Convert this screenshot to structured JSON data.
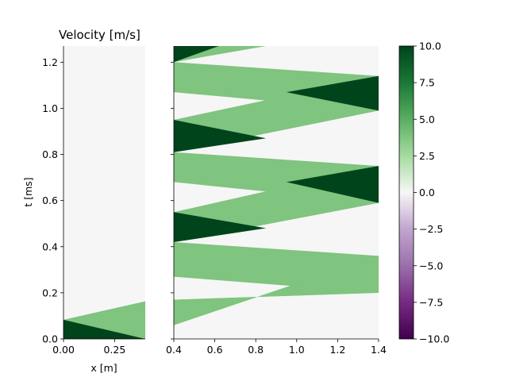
{
  "chart_data": {
    "type": "heatmap",
    "title": "Velocity [m/s]",
    "xlabel": "x [m]",
    "ylabel": "t [ms]",
    "units": "m/s",
    "vmin": -10,
    "vmax": 10,
    "colormap": "PRGn",
    "colors": {
      "low": "#40004b",
      "mid": "#f7f7f7",
      "high": "#00441b",
      "medium_positive": "#7fc47f",
      "background": "#f6f6f6"
    },
    "panels": [
      {
        "name": "left",
        "xlim": [
          0.0,
          0.4
        ],
        "ylim": [
          0.0,
          1.27
        ],
        "xticks": [
          "0.00",
          "0.25"
        ],
        "xtick_values": [
          0.0,
          0.25
        ],
        "yticks": [
          "0.0",
          "0.2",
          "0.4",
          "0.6",
          "0.8",
          "1.0",
          "1.2"
        ],
        "ytick_values": [
          0.0,
          0.2,
          0.4,
          0.6,
          0.8,
          1.0,
          1.2
        ],
        "regions": [
          {
            "value": 4,
            "points": [
              [
                0.0,
                0.0
              ],
              [
                0.4,
                0.0
              ],
              [
                0.4,
                0.163
              ],
              [
                0.0,
                0.083
              ]
            ]
          },
          {
            "value": 10,
            "points": [
              [
                0.0,
                0.0
              ],
              [
                0.4,
                0.0
              ],
              [
                0.0,
                0.083
              ]
            ]
          }
        ]
      },
      {
        "name": "right",
        "xlim": [
          0.4,
          1.4
        ],
        "ylim": [
          0.0,
          1.27
        ],
        "xticks": [
          "0.4",
          "0.6",
          "0.8",
          "1.0",
          "1.2",
          "1.4"
        ],
        "xtick_values": [
          0.4,
          0.6,
          0.8,
          1.0,
          1.2,
          1.4
        ],
        "regions": [
          {
            "value": 4,
            "points": [
              [
                0.4,
                0.0
              ],
              [
                0.4,
                0.17
              ],
              [
                1.4,
                0.2
              ],
              [
                1.4,
                0.36
              ],
              [
                0.4,
                0.06
              ]
            ]
          },
          {
            "value": 4,
            "points": [
              [
                0.4,
                0.06
              ],
              [
                1.4,
                0.36
              ],
              [
                1.4,
                0.2
              ],
              [
                0.4,
                0.17
              ]
            ]
          },
          {
            "value": 10,
            "points": [
              [
                0.95,
                0.29
              ],
              [
                1.4,
                0.36
              ],
              [
                1.4,
                0.2
              ]
            ]
          },
          {
            "value": 4,
            "points": [
              [
                0.4,
                0.42
              ],
              [
                1.4,
                0.36
              ],
              [
                1.4,
                0.2
              ],
              [
                0.4,
                0.27
              ]
            ]
          },
          {
            "value": 4,
            "points": [
              [
                0.4,
                0.42
              ],
              [
                0.4,
                0.55
              ],
              [
                1.4,
                0.75
              ],
              [
                1.4,
                0.59
              ]
            ]
          },
          {
            "value": 10,
            "points": [
              [
                0.4,
                0.42
              ],
              [
                0.4,
                0.55
              ],
              [
                0.85,
                0.48
              ]
            ]
          },
          {
            "value": 4,
            "points": [
              [
                0.4,
                0.81
              ],
              [
                1.4,
                0.75
              ],
              [
                1.4,
                0.59
              ],
              [
                0.4,
                0.68
              ]
            ]
          },
          {
            "value": 10,
            "points": [
              [
                0.95,
                0.68
              ],
              [
                1.4,
                0.75
              ],
              [
                1.4,
                0.59
              ]
            ]
          },
          {
            "value": 4,
            "points": [
              [
                0.4,
                0.81
              ],
              [
                0.4,
                0.95
              ],
              [
                1.4,
                1.14
              ],
              [
                1.4,
                0.99
              ]
            ]
          },
          {
            "value": 10,
            "points": [
              [
                0.4,
                0.81
              ],
              [
                0.4,
                0.95
              ],
              [
                0.85,
                0.87
              ]
            ]
          },
          {
            "value": 4,
            "points": [
              [
                0.4,
                1.2
              ],
              [
                1.4,
                1.14
              ],
              [
                1.4,
                0.99
              ],
              [
                0.4,
                1.07
              ]
            ]
          },
          {
            "value": 10,
            "points": [
              [
                0.95,
                1.07
              ],
              [
                1.4,
                1.14
              ],
              [
                1.4,
                0.99
              ]
            ]
          },
          {
            "value": 4,
            "points": [
              [
                0.4,
                1.2
              ],
              [
                0.4,
                1.27
              ],
              [
                0.85,
                1.27
              ]
            ]
          },
          {
            "value": 10,
            "points": [
              [
                0.4,
                1.2
              ],
              [
                0.4,
                1.27
              ],
              [
                0.62,
                1.27
              ]
            ]
          }
        ]
      }
    ],
    "colorbar": {
      "ticks": [
        "10.0",
        "7.5",
        "5.0",
        "2.5",
        "0.0",
        "−2.5",
        "−5.0",
        "−7.5",
        "−10.0"
      ],
      "tick_values": [
        10,
        7.5,
        5,
        2.5,
        0,
        -2.5,
        -5,
        -7.5,
        -10
      ]
    }
  }
}
